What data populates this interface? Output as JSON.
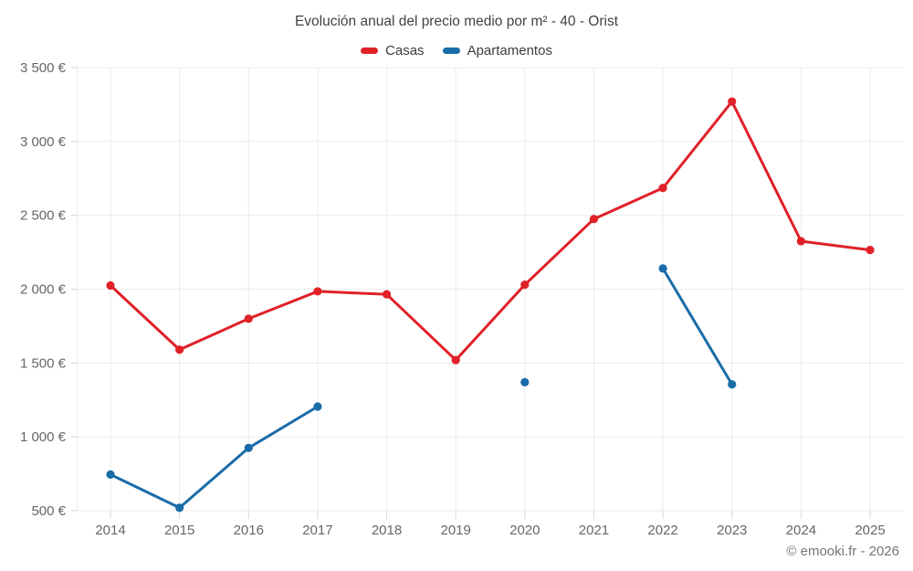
{
  "title": "Evolución anual del precio medio por m² - 40 - Orist",
  "attribution": "© emooki.fr - 2026",
  "chart_data": {
    "type": "line",
    "title": "Evolución anual del precio medio por m² - 40 - Orist",
    "categories": [
      "2014",
      "2015",
      "2016",
      "2017",
      "2018",
      "2019",
      "2020",
      "2021",
      "2022",
      "2023",
      "2024",
      "2025"
    ],
    "series": [
      {
        "name": "Casas",
        "color": "#e02128",
        "values": [
          2025,
          1590,
          1800,
          1985,
          1965,
          1520,
          2030,
          2475,
          2685,
          3270,
          2325,
          2265
        ]
      },
      {
        "name": "Apartamentos",
        "color": "#1a6ca8",
        "values": [
          745,
          520,
          925,
          1205,
          null,
          null,
          1370,
          null,
          2140,
          1355,
          null,
          null
        ]
      }
    ],
    "xlabel": "",
    "ylabel": "",
    "ylim": [
      500,
      3500
    ],
    "y_ticks": [
      {
        "value": 500,
        "label": "500 €"
      },
      {
        "value": 1000,
        "label": "1 000 €"
      },
      {
        "value": 1500,
        "label": "1 500 €"
      },
      {
        "value": 2000,
        "label": "2 000 €"
      },
      {
        "value": 2500,
        "label": "2 500 €"
      },
      {
        "value": 3000,
        "label": "3 000 €"
      },
      {
        "value": 3500,
        "label": "3 500 €"
      }
    ],
    "grid": true,
    "legend_position": "top",
    "colors": {
      "grid_line": "#ebebeb",
      "tick_mark": "#d6d6d6",
      "tick_label": "#666666",
      "title_text": "#424242",
      "attribution_text": "#757575"
    }
  }
}
